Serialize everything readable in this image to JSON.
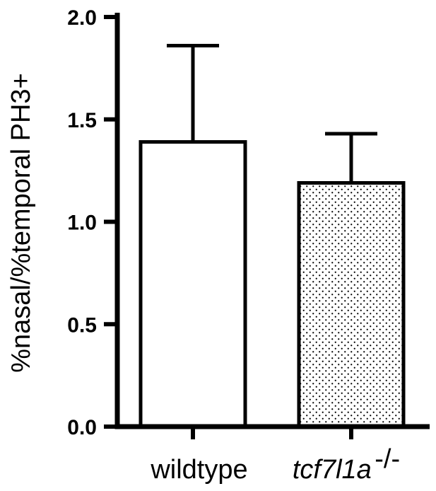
{
  "chart_data": {
    "type": "bar",
    "title": "",
    "xlabel": "",
    "ylabel": "%nasal/%temporal PH3+",
    "ylim": [
      0,
      2.0
    ],
    "yticks": [
      {
        "value": 0.0,
        "label": "0.0"
      },
      {
        "value": 0.5,
        "label": "0.5"
      },
      {
        "value": 1.0,
        "label": "1.0"
      },
      {
        "value": 1.5,
        "label": "1.5"
      },
      {
        "value": 2.0,
        "label": "2.0"
      }
    ],
    "grid": false,
    "categories": [
      "wildtype",
      "tcf7l1a"
    ],
    "category_superscripts": [
      "",
      "-/-"
    ],
    "values": [
      1.39,
      1.19
    ],
    "error_upper": [
      1.86,
      1.43
    ],
    "fills": [
      "white",
      "stipple"
    ],
    "colors": {
      "bar_edge": "#000000",
      "bar_fill": "#ffffff",
      "stipple_dot": "#000000",
      "axis": "#000000"
    }
  }
}
